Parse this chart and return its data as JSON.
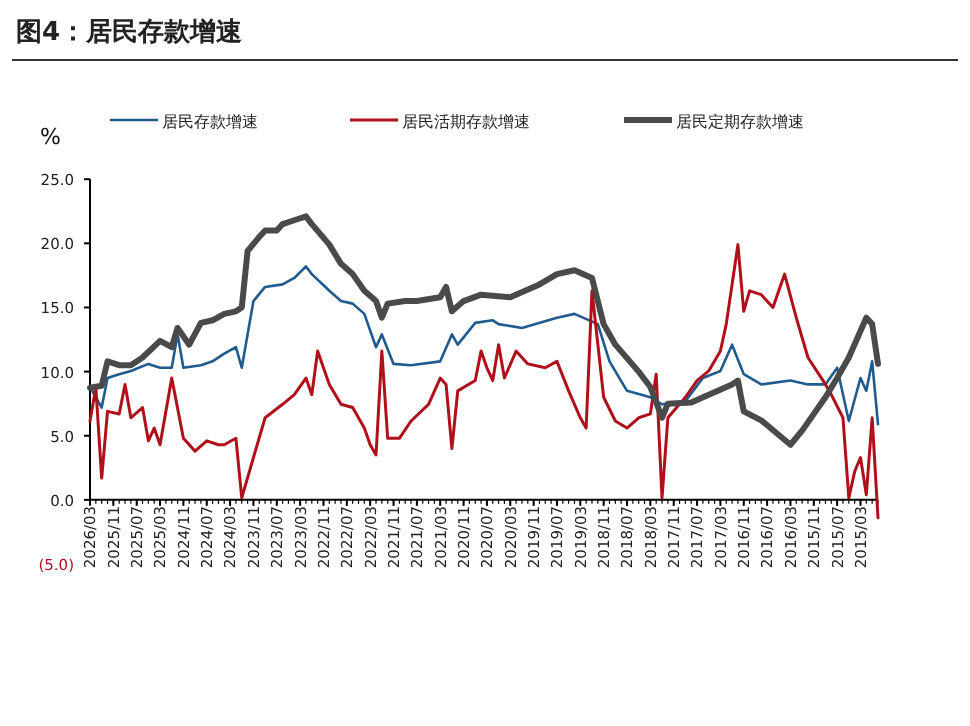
{
  "chart_data": {
    "type": "line",
    "title": "图4：居民存款增速",
    "ylabel": "%",
    "xlim": [
      "2026-03",
      "2014-12"
    ],
    "xticks": [
      {
        "value": "2026-03",
        "label": "2026/03"
      },
      {
        "value": "2025-11",
        "label": "2025/11"
      },
      {
        "value": "2025-07",
        "label": "2025/07"
      },
      {
        "value": "2025-03",
        "label": "2025/03"
      },
      {
        "value": "2024-11",
        "label": "2024/11"
      },
      {
        "value": "2024-07",
        "label": "2024/07"
      },
      {
        "value": "2024-03",
        "label": "2024/03"
      },
      {
        "value": "2023-11",
        "label": "2023/11"
      },
      {
        "value": "2023-07",
        "label": "2023/07"
      },
      {
        "value": "2023-03",
        "label": "2023/03"
      },
      {
        "value": "2022-11",
        "label": "2022/11"
      },
      {
        "value": "2022-07",
        "label": "2022/07"
      },
      {
        "value": "2022-03",
        "label": "2022/03"
      },
      {
        "value": "2021-11",
        "label": "2021/11"
      },
      {
        "value": "2021-07",
        "label": "2021/07"
      },
      {
        "value": "2021-03",
        "label": "2021/03"
      },
      {
        "value": "2020-11",
        "label": "2020/11"
      },
      {
        "value": "2020-07",
        "label": "2020/07"
      },
      {
        "value": "2020-03",
        "label": "2020/03"
      },
      {
        "value": "2019-11",
        "label": "2019/11"
      },
      {
        "value": "2019-07",
        "label": "2019/07"
      },
      {
        "value": "2019-03",
        "label": "2019/03"
      },
      {
        "value": "2018-11",
        "label": "2018/11"
      },
      {
        "value": "2018-07",
        "label": "2018/07"
      },
      {
        "value": "2018-03",
        "label": "2018/03"
      },
      {
        "value": "2017-11",
        "label": "2017/11"
      },
      {
        "value": "2017-07",
        "label": "2017/07"
      },
      {
        "value": "2017-03",
        "label": "2017/03"
      },
      {
        "value": "2016-11",
        "label": "2016/11"
      },
      {
        "value": "2016-07",
        "label": "2016/07"
      },
      {
        "value": "2016-03",
        "label": "2016/03"
      },
      {
        "value": "2015-11",
        "label": "2015/11"
      },
      {
        "value": "2015-07",
        "label": "2015/07"
      },
      {
        "value": "2015-03",
        "label": "2015/03"
      }
    ],
    "ylim": [
      -5,
      25
    ],
    "yticks": [
      {
        "value": -5,
        "label": "(5.0)"
      },
      {
        "value": 0,
        "label": "0.0"
      },
      {
        "value": 5,
        "label": "5.0"
      },
      {
        "value": 10,
        "label": "10.0"
      },
      {
        "value": 15,
        "label": "15.0"
      },
      {
        "value": 20,
        "label": "20.0"
      },
      {
        "value": 25,
        "label": "25.0"
      }
    ],
    "legend": "top",
    "grid": false,
    "series": [
      {
        "name": "居民存款增速",
        "color": "#1f5b8f",
        "x": [
          "2026-03",
          "2026-02",
          "2026-01",
          "2025-12",
          "2025-10",
          "2025-08",
          "2025-05",
          "2025-03",
          "2025-01",
          "2024-12",
          "2024-11",
          "2024-08",
          "2024-06",
          "2024-04",
          "2024-02",
          "2024-01",
          "2023-11",
          "2023-09",
          "2023-06",
          "2023-04",
          "2023-02",
          "2023-01",
          "2022-10",
          "2022-08",
          "2022-06",
          "2022-04",
          "2022-02",
          "2022-01",
          "2021-11",
          "2021-08",
          "2021-03",
          "2021-01",
          "2020-12",
          "2020-09",
          "2020-06",
          "2020-05",
          "2020-01",
          "2019-07",
          "2019-04",
          "2018-12",
          "2018-10",
          "2018-07",
          "2018-03",
          "2018-01",
          "2017-09",
          "2017-06",
          "2017-03",
          "2017-01",
          "2016-11",
          "2016-08",
          "2016-03",
          "2015-12",
          "2015-09",
          "2015-07",
          "2015-05",
          "2015-03",
          "2015-02",
          "2015-01",
          "2014-12"
        ],
        "values": [
          8.8,
          8.0,
          7.2,
          9.5,
          9.8,
          10.05,
          10.6,
          10.3,
          10.3,
          12.9,
          10.3,
          10.5,
          10.8,
          11.4,
          11.9,
          10.3,
          15.5,
          16.6,
          16.8,
          17.3,
          18.2,
          17.6,
          16.3,
          15.5,
          15.3,
          14.5,
          11.9,
          12.9,
          10.6,
          10.5,
          10.8,
          12.9,
          12.1,
          13.8,
          14.0,
          13.7,
          13.4,
          14.2,
          14.5,
          13.7,
          10.8,
          8.5,
          8.0,
          7.45,
          7.7,
          9.5,
          10.05,
          12.1,
          9.8,
          9.0,
          9.3,
          9.0,
          9.0,
          10.3,
          6.15,
          9.5,
          8.5,
          10.8,
          5.9
        ]
      },
      {
        "name": "居民活期存款增速",
        "color": "#b0101a",
        "x": [
          "2026-03",
          "2026-02",
          "2026-01",
          "2025-12",
          "2025-10",
          "2025-09",
          "2025-08",
          "2025-06",
          "2025-05",
          "2025-04",
          "2025-03",
          "2025-01",
          "2024-11",
          "2024-09",
          "2024-07",
          "2024-05",
          "2024-04",
          "2024-02",
          "2024-01",
          "2023-11",
          "2023-09",
          "2023-06",
          "2023-04",
          "2023-02",
          "2023-01",
          "2022-12",
          "2022-10",
          "2022-08",
          "2022-06",
          "2022-04",
          "2022-03",
          "2022-02",
          "2022-01",
          "2021-12",
          "2021-10",
          "2021-08",
          "2021-05",
          "2021-03",
          "2021-02",
          "2021-01",
          "2020-12",
          "2020-09",
          "2020-08",
          "2020-07",
          "2020-06",
          "2020-05",
          "2020-04",
          "2020-02",
          "2019-12",
          "2019-09",
          "2019-07",
          "2019-05",
          "2019-03",
          "2019-02",
          "2019-01",
          "2018-11",
          "2018-09",
          "2018-07",
          "2018-05",
          "2018-03",
          "2018-02",
          "2018-01",
          "2017-12",
          "2017-09",
          "2017-07",
          "2017-05",
          "2017-03",
          "2017-02",
          "2016-12",
          "2016-11",
          "2016-10",
          "2016-08",
          "2016-06",
          "2016-04",
          "2016-02",
          "2015-12",
          "2015-09",
          "2015-08",
          "2015-06",
          "2015-05",
          "2015-04",
          "2015-03",
          "2015-02",
          "2015-01",
          "2014-12"
        ],
        "values": [
          6.15,
          8.75,
          1.7,
          6.9,
          6.7,
          9.0,
          6.4,
          7.2,
          4.6,
          5.6,
          4.3,
          9.5,
          4.8,
          3.8,
          4.6,
          4.3,
          4.3,
          4.8,
          0.15,
          3.3,
          6.4,
          7.45,
          8.2,
          9.5,
          8.2,
          11.6,
          9.0,
          7.45,
          7.2,
          5.6,
          4.3,
          3.5,
          11.6,
          4.8,
          4.8,
          6.15,
          7.45,
          9.5,
          9.0,
          4.0,
          8.5,
          9.3,
          11.6,
          10.3,
          9.3,
          12.1,
          9.5,
          11.6,
          10.6,
          10.3,
          10.8,
          8.5,
          6.4,
          5.6,
          16.3,
          8.0,
          6.15,
          5.6,
          6.4,
          6.7,
          9.8,
          0.15,
          6.4,
          8.0,
          9.3,
          10.05,
          11.6,
          13.7,
          19.9,
          14.7,
          16.3,
          16.0,
          15.0,
          17.6,
          14.2,
          11.1,
          9.0,
          8.2,
          6.4,
          0.15,
          2.2,
          3.3,
          0.4,
          6.4,
          -1.4
        ]
      },
      {
        "name": "居民定期存款增速",
        "color": "#4a4a4a",
        "x": [
          "2026-03",
          "2026-01",
          "2025-12",
          "2025-10",
          "2025-08",
          "2025-06",
          "2025-03",
          "2025-01",
          "2024-12",
          "2024-10",
          "2024-08",
          "2024-06",
          "2024-04",
          "2024-02",
          "2024-01",
          "2023-12",
          "2023-10",
          "2023-09",
          "2023-07",
          "2023-06",
          "2023-04",
          "2023-02",
          "2023-01",
          "2022-10",
          "2022-08",
          "2022-06",
          "2022-04",
          "2022-02",
          "2022-01",
          "2021-12",
          "2021-09",
          "2021-07",
          "2021-03",
          "2021-02",
          "2021-01",
          "2020-11",
          "2020-08",
          "2020-03",
          "2019-10",
          "2019-07",
          "2019-04",
          "2019-01",
          "2018-11",
          "2018-09",
          "2018-05",
          "2018-03",
          "2018-01",
          "2017-12",
          "2017-08",
          "2017-05",
          "2017-01",
          "2016-12",
          "2016-11",
          "2016-08",
          "2016-03",
          "2016-01",
          "2015-09",
          "2015-07",
          "2015-05",
          "2015-02",
          "2015-01",
          "2014-12"
        ],
        "values": [
          8.75,
          8.9,
          10.8,
          10.5,
          10.5,
          11.1,
          12.4,
          11.9,
          13.4,
          12.1,
          13.8,
          14.0,
          14.5,
          14.7,
          15.0,
          19.4,
          20.5,
          21.0,
          21.0,
          21.5,
          21.8,
          22.1,
          21.5,
          19.9,
          18.4,
          17.6,
          16.3,
          15.5,
          14.2,
          15.3,
          15.5,
          15.5,
          15.8,
          16.6,
          14.7,
          15.5,
          16.0,
          15.8,
          16.8,
          17.6,
          17.9,
          17.3,
          13.7,
          12.1,
          10.0,
          8.8,
          6.4,
          7.5,
          7.6,
          8.2,
          9.0,
          9.3,
          6.9,
          6.2,
          4.3,
          5.4,
          8.0,
          9.5,
          11.1,
          14.2,
          13.7,
          10.6
        ]
      }
    ]
  }
}
